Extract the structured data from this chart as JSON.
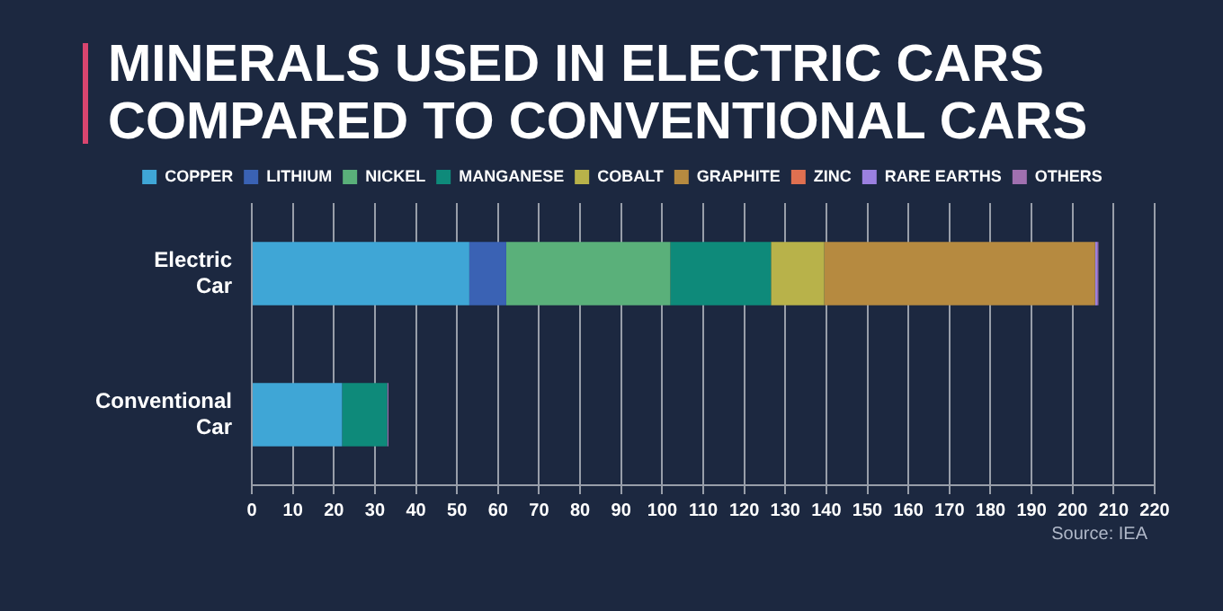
{
  "chart_data": {
    "type": "bar",
    "title": "MINERALS USED IN ELECTRIC CARS COMPARED TO CONVENTIONAL CARS",
    "orientation": "horizontal",
    "stacked": true,
    "categories": [
      "Electric Car",
      "Conventional Car"
    ],
    "series": [
      {
        "name": "COPPER",
        "color": "#3fa6d6",
        "values": [
          53,
          22
        ]
      },
      {
        "name": "LITHIUM",
        "color": "#3a62b4",
        "values": [
          9,
          null
        ]
      },
      {
        "name": "NICKEL",
        "color": "#5ab07a",
        "values": [
          40,
          null
        ]
      },
      {
        "name": "MANGANESE",
        "color": "#0e8a7a",
        "values": [
          24.5,
          11
        ]
      },
      {
        "name": "COBALT",
        "color": "#b8b24a",
        "values": [
          13,
          null
        ]
      },
      {
        "name": "GRAPHITE",
        "color": "#b68a40",
        "values": [
          66,
          null
        ]
      },
      {
        "name": "ZINC",
        "color": "#e07050",
        "values": [
          null,
          null
        ]
      },
      {
        "name": "RARE EARTHS",
        "color": "#9b80e0",
        "values": [
          0.5,
          null
        ]
      },
      {
        "name": "OTHERS",
        "color": "#a070b0",
        "values": [
          0.3,
          0.3
        ]
      }
    ],
    "xlim": [
      0,
      220
    ],
    "xticks": [
      0,
      10,
      20,
      30,
      40,
      50,
      60,
      70,
      80,
      90,
      100,
      110,
      120,
      130,
      140,
      150,
      160,
      170,
      180,
      190,
      200,
      210,
      220
    ],
    "grid": "x",
    "legend": "top",
    "annotations": [
      "Source: IEA"
    ]
  }
}
